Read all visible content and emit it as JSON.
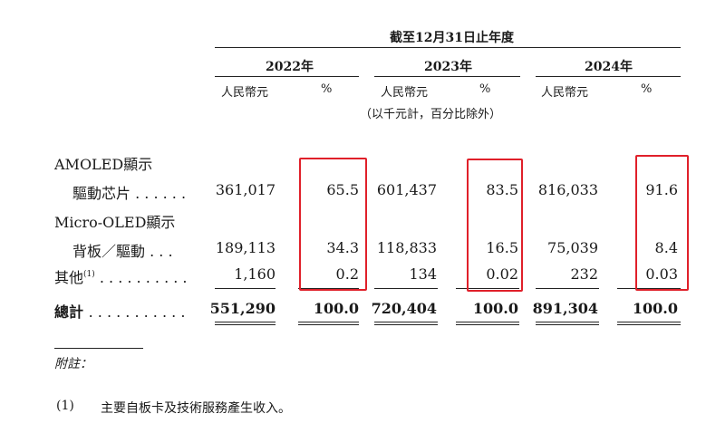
{
  "header": {
    "period": "截至12月31日止年度",
    "years": [
      "2022年",
      "2023年",
      "2024年"
    ],
    "unit_labels": [
      "人民幣元",
      "%",
      "人民幣元",
      "%",
      "人民幣元",
      "%"
    ],
    "unit_note": "（以千元計，百分比除外）"
  },
  "rows": [
    {
      "label_line1": "AMOLED顯示",
      "label_line2": "驅動芯片",
      "dots": ". . . . . .",
      "values": [
        "361,017",
        "65.5",
        "601,437",
        "83.5",
        "816,033",
        "91.6"
      ]
    },
    {
      "label_line1": "Micro-OLED顯示",
      "label_line2": "背板／驅動",
      "dots": ". . .",
      "values": [
        "189,113",
        "34.3",
        "118,833",
        "16.5",
        "75,039",
        "8.4"
      ]
    },
    {
      "label": "其他",
      "footnote_mark": "(1)",
      "dots": ". . . . . . . . . .",
      "values": [
        "1,160",
        "0.2",
        "134",
        "0.02",
        "232",
        "0.03"
      ]
    }
  ],
  "total": {
    "label": "總計",
    "dots": ". . . . . . . . . . .",
    "values": [
      "551,290",
      "100.0",
      "720,404",
      "100.0",
      "891,304",
      "100.0"
    ]
  },
  "notes": {
    "title": "附註：",
    "items": [
      {
        "mark": "(1)",
        "text": "主要自板卡及技術服務產生收入。"
      }
    ]
  },
  "highlight_color": "#e0202a"
}
